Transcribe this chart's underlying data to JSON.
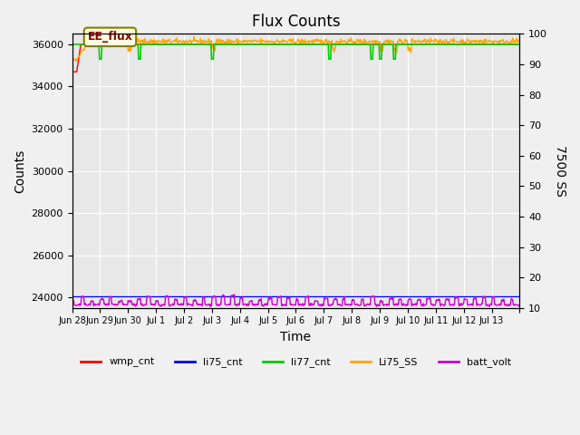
{
  "title": "Flux Counts",
  "xlabel": "Time",
  "ylabel_left": "Counts",
  "ylabel_right": "7500 SS",
  "annotation_text": "EE_flux",
  "xlim_days": [
    0,
    16
  ],
  "ylim_left": [
    23500,
    36500
  ],
  "ylim_right": [
    10,
    100
  ],
  "left_yticks": [
    24000,
    26000,
    28000,
    30000,
    32000,
    34000,
    36000
  ],
  "right_yticks": [
    10,
    20,
    30,
    40,
    50,
    60,
    70,
    80,
    90,
    100
  ],
  "xtick_positions": [
    0,
    1,
    2,
    3,
    4,
    5,
    6,
    7,
    8,
    9,
    10,
    11,
    12,
    13,
    14,
    15,
    16
  ],
  "xtick_labels": [
    "Jun 28",
    "Jun 29",
    "Jun 30",
    "Jul 1",
    "Jul 2",
    "Jul 3",
    "Jul 4",
    "Jul 5",
    "Jul 6",
    "Jul 7",
    "Jul 8",
    "Jul 9",
    "Jul 10",
    "Jul 11",
    "Jul 12",
    "Jul 13",
    ""
  ],
  "background_color": "#e8e8e8",
  "fig_bg_color": "#f0f0f0",
  "colors": {
    "wmp_cnt": "#ff0000",
    "li75_cnt": "#0000ff",
    "li77_cnt": "#00cc00",
    "Li75_SS": "#ffa500",
    "batt_volt": "#cc00cc"
  },
  "legend_entries": [
    "wmp_cnt",
    "li75_cnt",
    "li77_cnt",
    "Li75_SS",
    "batt_volt"
  ]
}
